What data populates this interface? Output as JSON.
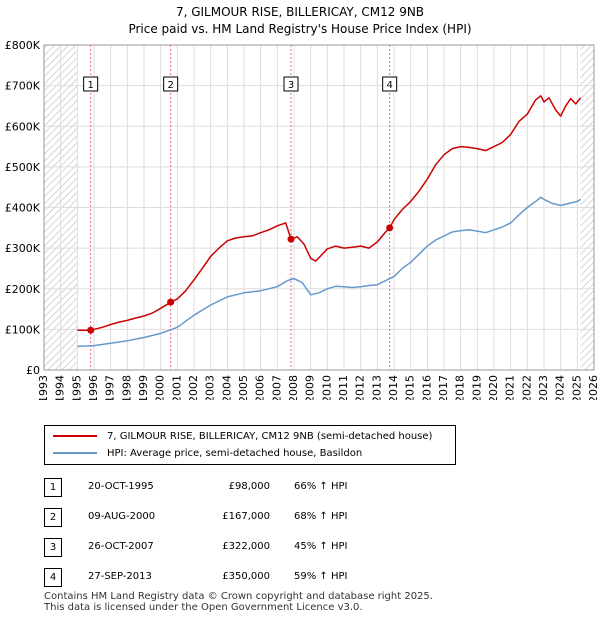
{
  "title_line1": "7, GILMOUR RISE, BILLERICAY, CM12 9NB",
  "title_line2": "Price paid vs. HM Land Registry's House Price Index (HPI)",
  "chart_data": {
    "type": "line",
    "title": "7, GILMOUR RISE, BILLERICAY, CM12 9NB — Price paid vs. HM Land Registry's House Price Index (HPI)",
    "xlabel": "",
    "ylabel": "",
    "xlim": [
      1993,
      2026
    ],
    "ylim": [
      0,
      800000
    ],
    "y_ticks": [
      0,
      100000,
      200000,
      300000,
      400000,
      500000,
      600000,
      700000,
      800000
    ],
    "y_tick_labels": [
      "£0",
      "£100K",
      "£200K",
      "£300K",
      "£400K",
      "£500K",
      "£600K",
      "£700K",
      "£800K"
    ],
    "x_ticks": [
      1993,
      1994,
      1995,
      1996,
      1997,
      1998,
      1999,
      2000,
      2001,
      2002,
      2003,
      2004,
      2005,
      2006,
      2007,
      2008,
      2009,
      2010,
      2011,
      2012,
      2013,
      2014,
      2015,
      2016,
      2017,
      2018,
      2019,
      2020,
      2021,
      2022,
      2023,
      2024,
      2025,
      2026
    ],
    "x_tick_labels": [
      "1993",
      "1994",
      "1995",
      "1996",
      "1997",
      "1998",
      "1999",
      "2000",
      "2001",
      "2002",
      "2003",
      "2004",
      "2005",
      "2006",
      "2007",
      "2008",
      "2009",
      "2010",
      "2011",
      "2012",
      "2013",
      "2014",
      "2015",
      "2016",
      "2017",
      "2018",
      "2019",
      "2020",
      "2021",
      "2022",
      "2023",
      "2024",
      "2025",
      "2026"
    ],
    "grid": true,
    "hatched_ranges": [
      [
        1993,
        1995.0
      ],
      [
        2025.2,
        2026
      ]
    ],
    "series": [
      {
        "name": "7, GILMOUR RISE, BILLERICAY, CM12 9NB (semi-detached house)",
        "color": "#cc0000",
        "x": [
          1995.0,
          1995.8,
          1996.5,
          1997.0,
          1997.5,
          1998.0,
          1998.5,
          1999.0,
          1999.5,
          2000.0,
          2000.6,
          2001.0,
          2001.5,
          2002.0,
          2002.5,
          2003.0,
          2003.5,
          2004.0,
          2004.5,
          2005.0,
          2005.5,
          2006.0,
          2006.5,
          2007.0,
          2007.5,
          2007.82,
          2008.2,
          2008.6,
          2009.0,
          2009.3,
          2009.7,
          2010.0,
          2010.5,
          2011.0,
          2011.5,
          2012.0,
          2012.5,
          2013.0,
          2013.5,
          2013.74,
          2014.0,
          2014.5,
          2015.0,
          2015.5,
          2016.0,
          2016.5,
          2017.0,
          2017.5,
          2018.0,
          2018.5,
          2019.0,
          2019.5,
          2020.0,
          2020.5,
          2021.0,
          2021.5,
          2022.0,
          2022.5,
          2022.8,
          2023.0,
          2023.3,
          2023.7,
          2024.0,
          2024.3,
          2024.6,
          2024.9,
          2025.2
        ],
        "values": [
          98000,
          98000,
          105000,
          112000,
          118000,
          122000,
          128000,
          133000,
          140000,
          152000,
          167000,
          175000,
          195000,
          222000,
          250000,
          280000,
          300000,
          318000,
          325000,
          328000,
          330000,
          338000,
          345000,
          355000,
          362000,
          322000,
          328000,
          310000,
          275000,
          268000,
          285000,
          298000,
          305000,
          300000,
          302000,
          305000,
          300000,
          315000,
          340000,
          350000,
          370000,
          395000,
          415000,
          440000,
          470000,
          505000,
          530000,
          545000,
          550000,
          548000,
          545000,
          540000,
          550000,
          560000,
          580000,
          612000,
          630000,
          665000,
          675000,
          660000,
          670000,
          640000,
          625000,
          650000,
          668000,
          655000,
          670000
        ]
      },
      {
        "name": "HPI: Average price, semi-detached house, Basildon",
        "color": "#6699cc",
        "x": [
          1995.0,
          1996.0,
          1997.0,
          1998.0,
          1999.0,
          2000.0,
          2001.0,
          2002.0,
          2003.0,
          2004.0,
          2005.0,
          2006.0,
          2007.0,
          2007.6,
          2008.0,
          2008.5,
          2009.0,
          2009.5,
          2010.0,
          2010.5,
          2011.0,
          2011.5,
          2012.0,
          2012.5,
          2013.0,
          2013.5,
          2014.0,
          2014.5,
          2015.0,
          2015.5,
          2016.0,
          2016.5,
          2017.0,
          2017.5,
          2018.0,
          2018.5,
          2019.0,
          2019.5,
          2020.0,
          2020.5,
          2021.0,
          2021.5,
          2022.0,
          2022.5,
          2022.8,
          2023.0,
          2023.5,
          2024.0,
          2024.5,
          2025.0,
          2025.2
        ],
        "values": [
          58000,
          60000,
          66000,
          72000,
          80000,
          90000,
          105000,
          135000,
          160000,
          180000,
          190000,
          195000,
          205000,
          220000,
          225000,
          215000,
          185000,
          190000,
          200000,
          206000,
          205000,
          203000,
          205000,
          208000,
          210000,
          220000,
          230000,
          250000,
          265000,
          285000,
          305000,
          320000,
          330000,
          340000,
          343000,
          345000,
          342000,
          338000,
          345000,
          352000,
          362000,
          382000,
          400000,
          415000,
          425000,
          420000,
          410000,
          405000,
          410000,
          415000,
          420000
        ]
      }
    ],
    "sales": [
      {
        "label": "1",
        "x": 1995.8,
        "value": 98000
      },
      {
        "label": "2",
        "x": 2000.6,
        "value": 167000
      },
      {
        "label": "3",
        "x": 2007.82,
        "value": 322000
      },
      {
        "label": "4",
        "x": 2013.74,
        "value": 350000
      }
    ]
  },
  "legend": {
    "red_label": "7, GILMOUR RISE, BILLERICAY, CM12 9NB (semi-detached house)",
    "blue_label": "HPI: Average price, semi-detached house, Basildon"
  },
  "sales_table": [
    {
      "num": "1",
      "date": "20-OCT-1995",
      "price": "£98,000",
      "hpi": "66% ↑ HPI"
    },
    {
      "num": "2",
      "date": "09-AUG-2000",
      "price": "£167,000",
      "hpi": "68% ↑ HPI"
    },
    {
      "num": "3",
      "date": "26-OCT-2007",
      "price": "£322,000",
      "hpi": "45% ↑ HPI"
    },
    {
      "num": "4",
      "date": "27-SEP-2013",
      "price": "£350,000",
      "hpi": "59% ↑ HPI"
    }
  ],
  "footer_line1": "Contains HM Land Registry data © Crown copyright and database right 2025.",
  "footer_line2": "This data is licensed under the Open Government Licence v3.0."
}
